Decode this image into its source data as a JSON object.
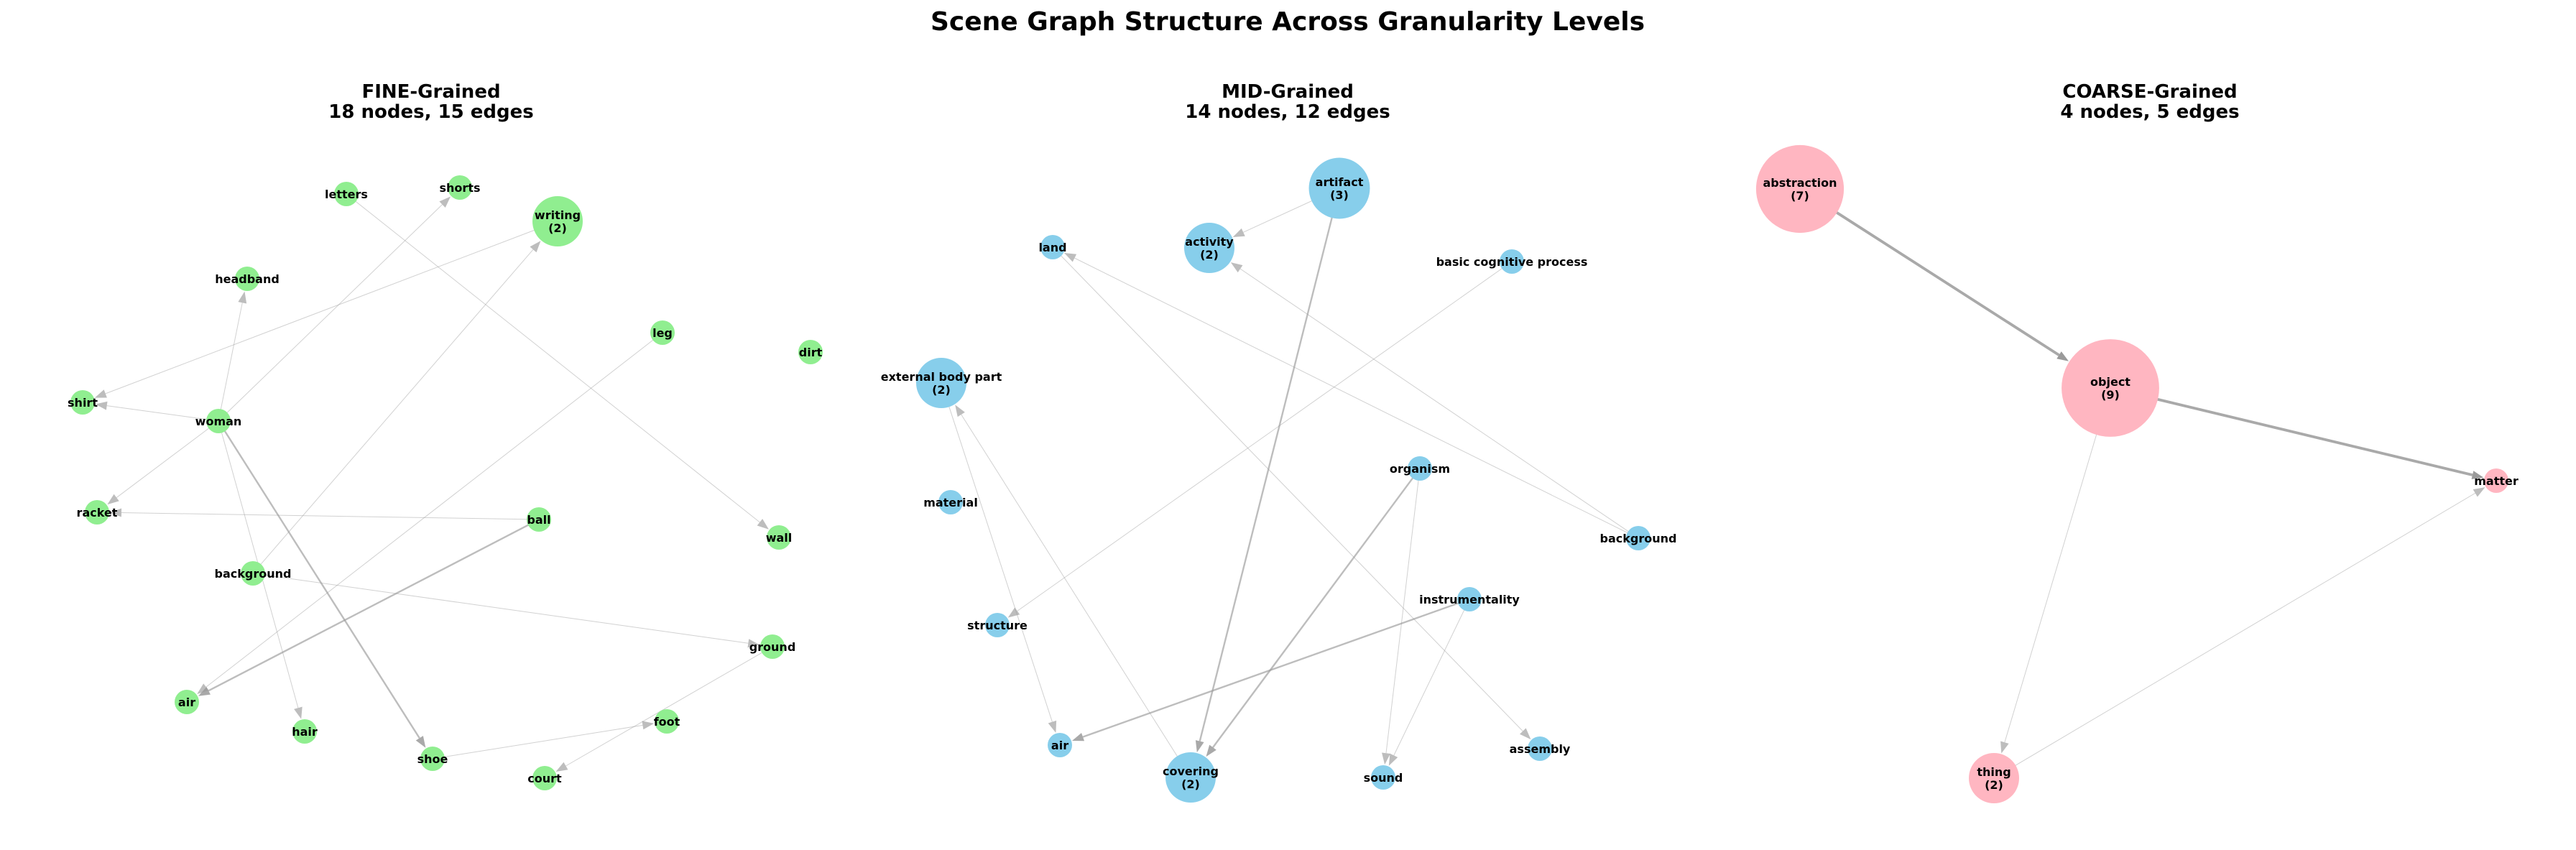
{
  "title": "Scene Graph Structure Across Granularity Levels",
  "panels": [
    {
      "id": "fine",
      "title": "FINE-Grained",
      "subtitle": "18 nodes, 15 edges",
      "node_color": "#90ee90",
      "nodes": [
        {
          "id": "letters",
          "label": "letters",
          "count": 1
        },
        {
          "id": "shorts",
          "label": "shorts",
          "count": 1
        },
        {
          "id": "writing",
          "label": "writing",
          "count": 2
        },
        {
          "id": "headband",
          "label": "headband",
          "count": 1
        },
        {
          "id": "leg",
          "label": "leg",
          "count": 1
        },
        {
          "id": "dirt",
          "label": "dirt",
          "count": 1
        },
        {
          "id": "shirt",
          "label": "shirt",
          "count": 1
        },
        {
          "id": "woman",
          "label": "woman",
          "count": 1
        },
        {
          "id": "racket",
          "label": "racket",
          "count": 1
        },
        {
          "id": "ball",
          "label": "ball",
          "count": 1
        },
        {
          "id": "wall",
          "label": "wall",
          "count": 1
        },
        {
          "id": "background",
          "label": "background",
          "count": 1
        },
        {
          "id": "ground",
          "label": "ground",
          "count": 1
        },
        {
          "id": "air",
          "label": "air",
          "count": 1
        },
        {
          "id": "hair",
          "label": "hair",
          "count": 1
        },
        {
          "id": "foot",
          "label": "foot",
          "count": 1
        },
        {
          "id": "shoe",
          "label": "shoe",
          "count": 1
        },
        {
          "id": "court",
          "label": "court",
          "count": 1
        }
      ],
      "edges": [
        {
          "from": "woman",
          "to": "headband",
          "weight": 1
        },
        {
          "from": "woman",
          "to": "shorts",
          "weight": 1
        },
        {
          "from": "woman",
          "to": "shirt",
          "weight": 1
        },
        {
          "from": "woman",
          "to": "racket",
          "weight": 1
        },
        {
          "from": "woman",
          "to": "shoe",
          "weight": 2
        },
        {
          "from": "woman",
          "to": "hair",
          "weight": 1
        },
        {
          "from": "writing",
          "to": "shirt",
          "weight": 1
        },
        {
          "from": "letters",
          "to": "wall",
          "weight": 1
        },
        {
          "from": "background",
          "to": "writing",
          "weight": 1
        },
        {
          "from": "background",
          "to": "ground",
          "weight": 1
        },
        {
          "from": "leg",
          "to": "air",
          "weight": 1
        },
        {
          "from": "ball",
          "to": "racket",
          "weight": 1
        },
        {
          "from": "ball",
          "to": "air",
          "weight": 2
        },
        {
          "from": "shoe",
          "to": "foot",
          "weight": 1
        },
        {
          "from": "ground",
          "to": "court",
          "weight": 1
        }
      ]
    },
    {
      "id": "mid",
      "title": "MID-Grained",
      "subtitle": "14 nodes, 12 edges",
      "node_color": "#87ceeb",
      "nodes": [
        {
          "id": "artifact",
          "label": "artifact",
          "count": 3
        },
        {
          "id": "land",
          "label": "land",
          "count": 1
        },
        {
          "id": "activity",
          "label": "activity",
          "count": 2
        },
        {
          "id": "basic-cognitive-process",
          "label": "basic cognitive process",
          "count": 1
        },
        {
          "id": "external-body-part",
          "label": "external body part",
          "count": 2
        },
        {
          "id": "organism",
          "label": "organism",
          "count": 1
        },
        {
          "id": "material",
          "label": "material",
          "count": 1
        },
        {
          "id": "background",
          "label": "background",
          "count": 1
        },
        {
          "id": "instrumentality",
          "label": "instrumentality",
          "count": 1
        },
        {
          "id": "structure",
          "label": "structure",
          "count": 1
        },
        {
          "id": "air",
          "label": "air",
          "count": 1
        },
        {
          "id": "assembly",
          "label": "assembly",
          "count": 1
        },
        {
          "id": "covering",
          "label": "covering",
          "count": 2
        },
        {
          "id": "sound",
          "label": "sound",
          "count": 1
        }
      ],
      "edges": [
        {
          "from": "artifact",
          "to": "activity",
          "weight": 1
        },
        {
          "from": "artifact",
          "to": "covering",
          "weight": 2
        },
        {
          "from": "background",
          "to": "land",
          "weight": 1
        },
        {
          "from": "background",
          "to": "activity",
          "weight": 1
        },
        {
          "from": "basic-cognitive-process",
          "to": "structure",
          "weight": 1
        },
        {
          "from": "covering",
          "to": "external-body-part",
          "weight": 1
        },
        {
          "from": "external-body-part",
          "to": "air",
          "weight": 1
        },
        {
          "from": "land",
          "to": "assembly",
          "weight": 1
        },
        {
          "from": "organism",
          "to": "covering",
          "weight": 2
        },
        {
          "from": "organism",
          "to": "sound",
          "weight": 1
        },
        {
          "from": "instrumentality",
          "to": "air",
          "weight": 2
        },
        {
          "from": "instrumentality",
          "to": "sound",
          "weight": 1
        }
      ]
    },
    {
      "id": "coarse",
      "title": "COARSE-Grained",
      "subtitle": "4 nodes, 5 edges",
      "node_color": "#ffb6c1",
      "nodes": [
        {
          "id": "abstraction",
          "label": "abstraction",
          "count": 7
        },
        {
          "id": "object",
          "label": "object",
          "count": 9
        },
        {
          "id": "matter",
          "label": "matter",
          "count": 1
        },
        {
          "id": "thing",
          "label": "thing",
          "count": 2
        }
      ],
      "edges": [
        {
          "from": "abstraction",
          "to": "object",
          "weight": 3
        },
        {
          "from": "object",
          "to": "matter",
          "weight": 3
        },
        {
          "from": "object",
          "to": "thing",
          "weight": 1
        },
        {
          "from": "thing",
          "to": "matter",
          "weight": 1
        },
        {
          "from": "object",
          "to": "object",
          "weight": 1
        }
      ]
    }
  ]
}
